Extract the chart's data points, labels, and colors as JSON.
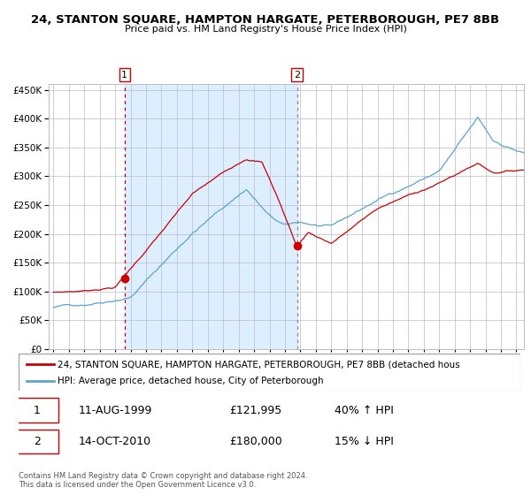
{
  "title": "24, STANTON SQUARE, HAMPTON HARGATE, PETERBOROUGH, PE7 8BB",
  "subtitle": "Price paid vs. HM Land Registry's House Price Index (HPI)",
  "legend_line1": "24, STANTON SQUARE, HAMPTON HARGATE, PETERBOROUGH, PE7 8BB (detached hous",
  "legend_line2": "HPI: Average price, detached house, City of Peterborough",
  "transaction1_date": "11-AUG-1999",
  "transaction1_price": "£121,995",
  "transaction1_hpi": "40% ↑ HPI",
  "transaction2_date": "14-OCT-2010",
  "transaction2_price": "£180,000",
  "transaction2_hpi": "15% ↓ HPI",
  "footer": "Contains HM Land Registry data © Crown copyright and database right 2024.\nThis data is licensed under the Open Government Licence v3.0.",
  "hpi_color": "#5ba3d0",
  "price_color": "#cc0000",
  "shade_color": "#ddeeff",
  "grid_color": "#bbbbcc",
  "transaction1_x": 1999.61,
  "transaction1_y": 121995,
  "transaction2_x": 2010.78,
  "transaction2_y": 180000,
  "ylim": [
    0,
    460000
  ],
  "xlim_start": 1994.7,
  "xlim_end": 2025.5,
  "bg_color": "#ffffff"
}
